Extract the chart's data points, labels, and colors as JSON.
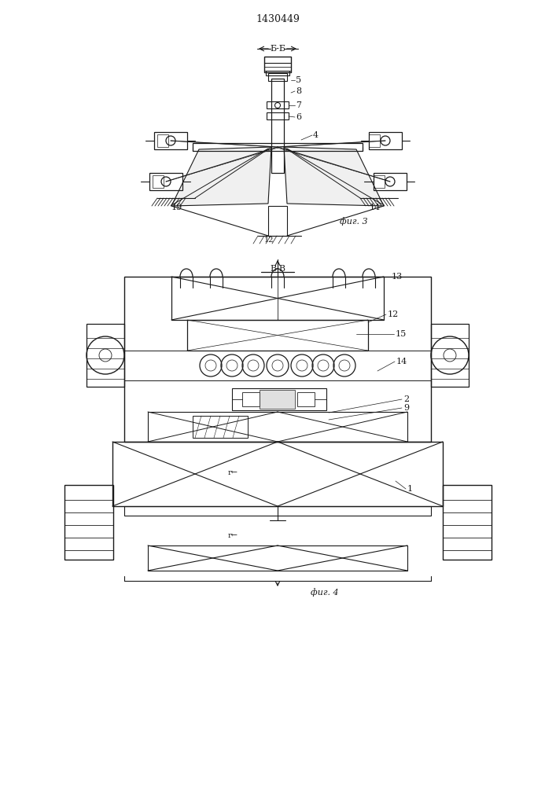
{
  "title": "1430449",
  "fig3_label": "фиг. 3",
  "fig4_label": "фиг. 4",
  "section_b_label": "Б-Б",
  "section_v_label": "В-В",
  "bg_color": "#ffffff",
  "line_color": "#1a1a1a",
  "line_width": 0.8
}
